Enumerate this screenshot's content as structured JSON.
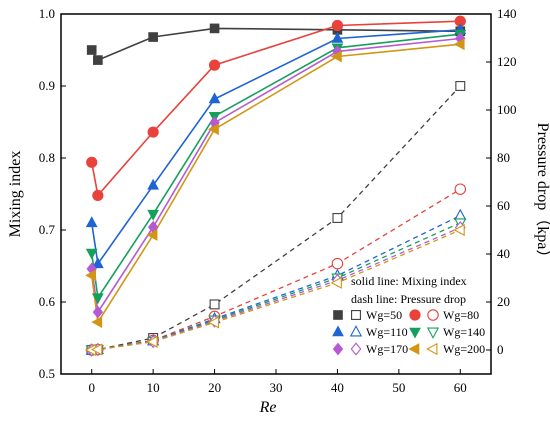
{
  "chart_data": {
    "type": "line",
    "xlabel": "Re",
    "ylabel_left": "Mixing index",
    "ylabel_right": "Pressure drop（kpa）",
    "xlim": [
      -5,
      65
    ],
    "ylim_left": [
      0.5,
      1.0
    ],
    "ylim_right": [
      -10,
      140
    ],
    "x_ticks": [
      0,
      10,
      20,
      30,
      40,
      50,
      60
    ],
    "y_left_ticks": [
      0.5,
      0.6,
      0.7,
      0.8,
      0.9,
      1.0
    ],
    "y_right_ticks": [
      0,
      20,
      40,
      60,
      80,
      100,
      120,
      140
    ],
    "x_tick_labels": [
      "0",
      "10",
      "20",
      "30",
      "40",
      "50",
      "60"
    ],
    "y_left_tick_labels": [
      "0.5",
      "0.6",
      "0.7",
      "0.8",
      "0.9",
      "1.0"
    ],
    "y_right_tick_labels": [
      "0",
      "20",
      "40",
      "60",
      "80",
      "100",
      "120",
      "140"
    ],
    "note_line1": "solid line: Mixing index",
    "note_line2": "dash line: Pressure drop",
    "grid": false,
    "legend_position": "bottom-right",
    "series": [
      {
        "name": "Wg=50",
        "color": "#404040",
        "marker": "square",
        "x": [
          0,
          1,
          10,
          20,
          40,
          60
        ],
        "mixing": [
          0.95,
          0.936,
          0.968,
          0.98,
          0.978,
          0.976
        ],
        "pressure": [
          0.0,
          0.2,
          5.0,
          19.0,
          55.0,
          110.0
        ]
      },
      {
        "name": "Wg=80",
        "color": "#e8423a",
        "marker": "circle",
        "x": [
          0,
          1,
          10,
          20,
          40,
          60
        ],
        "mixing": [
          0.794,
          0.748,
          0.836,
          0.929,
          0.984,
          0.99
        ],
        "pressure": [
          0.0,
          0.2,
          4.0,
          14.0,
          36.0,
          67.0
        ]
      },
      {
        "name": "Wg=110",
        "color": "#1e64d2",
        "marker": "triangle-up",
        "x": [
          0,
          1,
          10,
          20,
          40,
          60
        ],
        "mixing": [
          0.71,
          0.653,
          0.762,
          0.882,
          0.966,
          0.978
        ],
        "pressure": [
          0.0,
          0.2,
          3.8,
          13.0,
          31.0,
          56.0
        ]
      },
      {
        "name": "Wg=140",
        "color": "#14a05a",
        "marker": "triangle-down",
        "x": [
          0,
          1,
          10,
          20,
          40,
          60
        ],
        "mixing": [
          0.668,
          0.606,
          0.722,
          0.858,
          0.953,
          0.972
        ],
        "pressure": [
          0.0,
          0.2,
          3.6,
          12.5,
          30.0,
          53.0
        ]
      },
      {
        "name": "Wg=170",
        "color": "#b45ad2",
        "marker": "diamond",
        "x": [
          0,
          1,
          10,
          20,
          40,
          60
        ],
        "mixing": [
          0.646,
          0.586,
          0.704,
          0.849,
          0.948,
          0.966
        ],
        "pressure": [
          0.0,
          0.2,
          3.5,
          12.0,
          29.0,
          51.0
        ]
      },
      {
        "name": "Wg=200",
        "color": "#d29614",
        "marker": "triangle-left",
        "x": [
          0,
          1,
          10,
          20,
          40,
          60
        ],
        "mixing": [
          0.637,
          0.572,
          0.693,
          0.84,
          0.941,
          0.958
        ],
        "pressure": [
          0.0,
          0.2,
          3.4,
          11.5,
          28.0,
          50.0
        ]
      }
    ]
  }
}
